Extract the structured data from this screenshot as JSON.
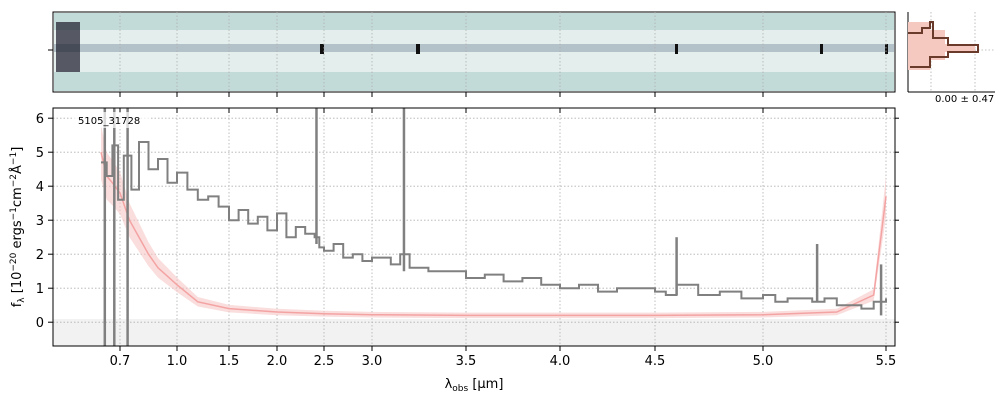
{
  "colors": {
    "spectrum": "#808080",
    "model": "#f4a3a3",
    "model_band": "#f7c6c6",
    "grid": "#b0b0b0",
    "cutout_bg": "#c2dad8",
    "profile_line": "#6a3a2a",
    "profile_fill": "#f6c9c0"
  },
  "chart_data": [
    {
      "type": "line",
      "object_label": "5105_31728",
      "ylabel": "f_λ [10^−20 ergs^−1cm^−2Å^−1]",
      "ylabel_parts": {
        "main": "f",
        "sub": "λ",
        "unit_a": " [10",
        "exp1": "−20",
        "unit_b": " ergs",
        "exp2": "−1",
        "unit_c": "cm",
        "exp3": "−2",
        "unit_d": "Å",
        "exp4": "−1",
        "unit_e": "]"
      },
      "xlabel_parts": {
        "main": "λ",
        "sub": "obs",
        "unit": " [μm]"
      },
      "xlim": [
        0.55,
        5.53
      ],
      "ylim": [
        -0.7,
        6.3
      ],
      "xticks": [
        0.7,
        1.0,
        1.5,
        2.0,
        2.5,
        3.0,
        3.5,
        4.0,
        4.5,
        5.0,
        5.5
      ],
      "xtick_labels": [
        "0.7",
        "1.0",
        "1.5",
        "2.0",
        "2.5",
        "3.0",
        "3.5",
        "4.0",
        "4.5",
        "5.0",
        "5.5"
      ],
      "yticks": [
        0,
        1,
        2,
        3,
        4,
        5,
        6
      ],
      "ytick_labels": [
        "0",
        "1",
        "2",
        "3",
        "4",
        "5",
        "6"
      ],
      "grid": true,
      "series": [
        {
          "role": "data",
          "x": [
            0.6,
            0.63,
            0.66,
            0.69,
            0.72,
            0.76,
            0.8,
            0.85,
            0.9,
            0.95,
            1.0,
            1.1,
            1.2,
            1.3,
            1.4,
            1.5,
            1.6,
            1.7,
            1.8,
            1.9,
            2.0,
            2.1,
            2.2,
            2.3,
            2.4,
            2.45,
            2.5,
            2.6,
            2.7,
            2.8,
            2.9,
            3.0,
            3.1,
            3.15,
            3.2,
            3.3,
            3.4,
            3.5,
            3.6,
            3.7,
            3.8,
            3.9,
            4.0,
            4.1,
            4.2,
            4.3,
            4.4,
            4.5,
            4.55,
            4.6,
            4.7,
            4.8,
            4.9,
            5.0,
            5.05,
            5.1,
            5.2,
            5.25,
            5.3,
            5.4,
            5.45,
            5.5
          ],
          "y": [
            4.7,
            4.3,
            5.2,
            3.6,
            4.9,
            3.9,
            5.3,
            4.5,
            4.8,
            4.1,
            4.4,
            3.9,
            3.6,
            3.7,
            3.4,
            3.0,
            3.3,
            2.9,
            3.1,
            2.7,
            3.2,
            2.5,
            2.8,
            2.6,
            2.5,
            2.2,
            2.1,
            2.3,
            1.9,
            2.0,
            1.8,
            1.9,
            1.7,
            2.0,
            1.6,
            1.5,
            1.5,
            1.3,
            1.4,
            1.2,
            1.3,
            1.1,
            1.0,
            1.1,
            0.9,
            1.0,
            1.0,
            0.9,
            0.8,
            1.1,
            0.8,
            0.9,
            0.7,
            0.8,
            0.6,
            0.7,
            0.6,
            0.7,
            0.5,
            0.4,
            0.6,
            0.7
          ]
        },
        {
          "role": "model",
          "x": [
            0.6,
            0.63,
            0.66,
            0.7,
            0.75,
            0.8,
            0.85,
            0.9,
            1.0,
            1.2,
            1.5,
            2.0,
            2.5,
            3.0,
            3.5,
            4.0,
            4.5,
            5.0,
            5.3,
            5.45,
            5.5
          ],
          "y": [
            5.0,
            4.3,
            4.1,
            3.8,
            3.0,
            2.5,
            2.0,
            1.6,
            1.1,
            0.6,
            0.4,
            0.3,
            0.25,
            0.22,
            0.2,
            0.2,
            0.2,
            0.22,
            0.3,
            0.8,
            3.7
          ]
        }
      ]
    }
  ],
  "cutout": {
    "profile_stat": "0.00 ± 0.47"
  }
}
